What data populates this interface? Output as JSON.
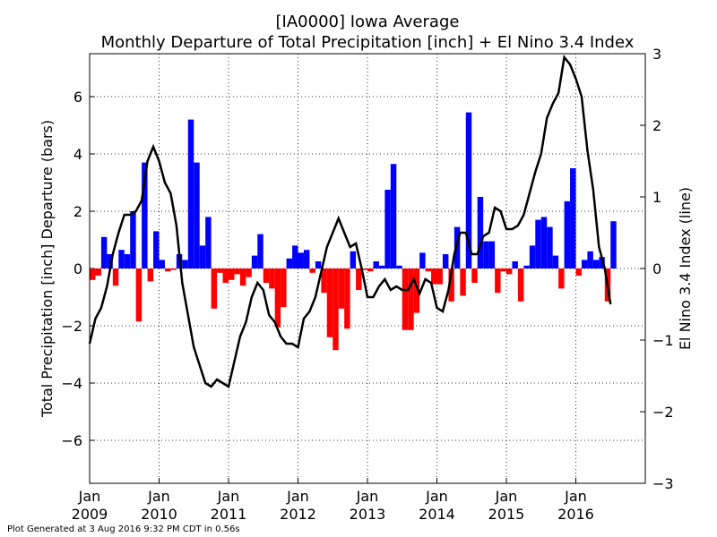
{
  "chart_data": {
    "type": "combo",
    "title": "[IA0000] Iowa Average",
    "subtitle": "Monthly Departure of Total Precipitation [inch] + El Nino 3.4 Index",
    "ylabel": "Total Precipitation [inch] Departure (bars)",
    "y2label": "El Nino 3.4 Index (line)",
    "footer": "Plot Generated at 3 Aug 2016 9:32 PM CDT in 0.56s",
    "grid": true,
    "x": [
      "2009-01",
      "2009-02",
      "2009-03",
      "2009-04",
      "2009-05",
      "2009-06",
      "2009-07",
      "2009-08",
      "2009-09",
      "2009-10",
      "2009-11",
      "2009-12",
      "2010-01",
      "2010-02",
      "2010-03",
      "2010-04",
      "2010-05",
      "2010-06",
      "2010-07",
      "2010-08",
      "2010-09",
      "2010-10",
      "2010-11",
      "2010-12",
      "2011-01",
      "2011-02",
      "2011-03",
      "2011-04",
      "2011-05",
      "2011-06",
      "2011-07",
      "2011-08",
      "2011-09",
      "2011-10",
      "2011-11",
      "2011-12",
      "2012-01",
      "2012-02",
      "2012-03",
      "2012-04",
      "2012-05",
      "2012-06",
      "2012-07",
      "2012-08",
      "2012-09",
      "2012-10",
      "2012-11",
      "2012-12",
      "2013-01",
      "2013-02",
      "2013-03",
      "2013-04",
      "2013-05",
      "2013-06",
      "2013-07",
      "2013-08",
      "2013-09",
      "2013-10",
      "2013-11",
      "2013-12",
      "2014-01",
      "2014-02",
      "2014-03",
      "2014-04",
      "2014-05",
      "2014-06",
      "2014-07",
      "2014-08",
      "2014-09",
      "2014-10",
      "2014-11",
      "2014-12",
      "2015-01",
      "2015-02",
      "2015-03",
      "2015-04",
      "2015-05",
      "2015-06",
      "2015-07",
      "2015-08",
      "2015-09",
      "2015-10",
      "2015-11",
      "2015-12",
      "2016-01",
      "2016-02",
      "2016-03",
      "2016-04",
      "2016-05",
      "2016-06",
      "2016-07"
    ],
    "xlim": [
      "2009-01",
      "2017-01"
    ],
    "xticks": [
      {
        "value": "2009-01",
        "label": "Jan 2009"
      },
      {
        "value": "2010-01",
        "label": "Jan 2010"
      },
      {
        "value": "2011-01",
        "label": "Jan 2011"
      },
      {
        "value": "2012-01",
        "label": "Jan 2012"
      },
      {
        "value": "2013-01",
        "label": "Jan 2013"
      },
      {
        "value": "2014-01",
        "label": "Jan 2014"
      },
      {
        "value": "2015-01",
        "label": "Jan 2015"
      },
      {
        "value": "2016-01",
        "label": "Jan 2016"
      }
    ],
    "ylim": [
      -7.5,
      7.5
    ],
    "yticks": [
      {
        "value": -6,
        "label": "−6"
      },
      {
        "value": -4,
        "label": "−4"
      },
      {
        "value": -2,
        "label": "−2"
      },
      0,
      2,
      4,
      6
    ],
    "y2lim": [
      -3,
      3
    ],
    "y2ticks": [
      {
        "value": -3,
        "label": "−3"
      },
      {
        "value": -2,
        "label": "−2"
      },
      {
        "value": -1,
        "label": "−1"
      },
      0,
      1,
      2,
      3
    ],
    "series": [
      {
        "type": "bar",
        "positive_color": "#0000ff",
        "negative_color": "#ff0000",
        "values": [
          -0.4,
          -0.25,
          1.1,
          0.5,
          -0.6,
          0.65,
          0.5,
          2.0,
          -1.85,
          3.7,
          -0.45,
          1.3,
          0.3,
          -0.1,
          -0.05,
          0.5,
          0.3,
          5.2,
          3.7,
          0.8,
          1.8,
          -1.4,
          -0.15,
          -0.5,
          -0.4,
          -0.2,
          -0.6,
          -0.3,
          0.45,
          1.2,
          -0.5,
          -0.7,
          -2.05,
          -1.35,
          0.35,
          0.8,
          0.55,
          0.65,
          -0.15,
          0.25,
          -0.85,
          -2.4,
          -2.85,
          -1.4,
          -2.1,
          0.6,
          -0.75,
          -0.05,
          -0.1,
          0.25,
          0.1,
          2.75,
          3.65,
          0.1,
          -2.15,
          -2.15,
          -1.55,
          0.55,
          -0.1,
          -0.55,
          -0.55,
          0.5,
          -1.15,
          1.45,
          -0.95,
          5.45,
          -0.5,
          2.5,
          0.95,
          0.95,
          -0.85,
          -0.1,
          -0.2,
          0.25,
          -1.15,
          0.1,
          0.8,
          1.7,
          1.8,
          1.45,
          0.45,
          -0.7,
          2.35,
          3.5,
          -0.25,
          0.3,
          0.6,
          0.3,
          0.4,
          -1.15,
          1.65
        ]
      },
      {
        "type": "line",
        "axis": "y2",
        "color": "#000000",
        "values": [
          -1.05,
          -0.7,
          -0.55,
          -0.25,
          0.2,
          0.5,
          0.75,
          0.75,
          0.8,
          0.95,
          1.5,
          1.7,
          1.5,
          1.2,
          1.05,
          0.6,
          -0.2,
          -0.65,
          -1.1,
          -1.35,
          -1.6,
          -1.65,
          -1.55,
          -1.6,
          -1.65,
          -1.3,
          -0.95,
          -0.75,
          -0.4,
          -0.2,
          -0.3,
          -0.65,
          -0.75,
          -0.95,
          -1.05,
          -1.05,
          -1.1,
          -0.7,
          -0.6,
          -0.4,
          -0.05,
          0.3,
          0.5,
          0.7,
          0.5,
          0.3,
          0.35,
          0.0,
          -0.4,
          -0.4,
          -0.25,
          -0.15,
          -0.3,
          -0.25,
          -0.3,
          -0.3,
          -0.15,
          -0.35,
          -0.15,
          -0.2,
          -0.55,
          -0.6,
          -0.3,
          0.2,
          0.5,
          0.5,
          0.2,
          0.2,
          0.45,
          0.5,
          0.85,
          0.8,
          0.55,
          0.55,
          0.6,
          0.75,
          1.05,
          1.35,
          1.6,
          2.1,
          2.3,
          2.45,
          2.95,
          2.85,
          2.65,
          2.4,
          1.65,
          1.1,
          0.3,
          0.0,
          -0.5
        ]
      }
    ]
  }
}
